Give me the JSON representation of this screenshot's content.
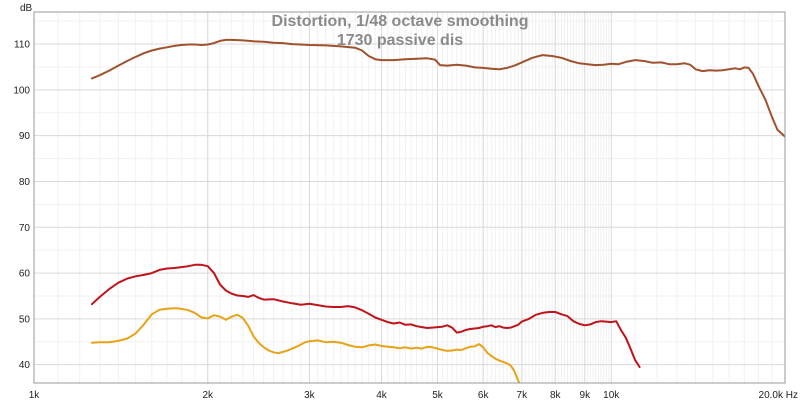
{
  "chart_data": {
    "type": "line",
    "title": "Distortion, 1/48 octave smoothing",
    "subtitle": "1730 passive dis",
    "ylabel": "dB",
    "xunit": "Hz",
    "xscale": "log",
    "xlim": [
      1000,
      20000
    ],
    "ylim": [
      36,
      117
    ],
    "grid": true,
    "background": "#ffffff",
    "grid_color": "#d9d9d9",
    "axis_color": "#9a9a9a",
    "x_ticks": [
      {
        "value": 1000,
        "label": "1k"
      },
      {
        "value": 2000,
        "label": "2k"
      },
      {
        "value": 3000,
        "label": "3k"
      },
      {
        "value": 4000,
        "label": "4k"
      },
      {
        "value": 5000,
        "label": "5k"
      },
      {
        "value": 6000,
        "label": "6k"
      },
      {
        "value": 7000,
        "label": "7k"
      },
      {
        "value": 8000,
        "label": "8k"
      },
      {
        "value": 9000,
        "label": "9k"
      },
      {
        "value": 10000,
        "label": "10k"
      },
      {
        "value": 20000,
        "label": "20.0k Hz"
      }
    ],
    "y_ticks": [
      {
        "value": 40,
        "label": "40"
      },
      {
        "value": 50,
        "label": "50"
      },
      {
        "value": 60,
        "label": "60"
      },
      {
        "value": 70,
        "label": "70"
      },
      {
        "value": 80,
        "label": "80"
      },
      {
        "value": 90,
        "label": "90"
      },
      {
        "value": 100,
        "label": "100"
      },
      {
        "value": 110,
        "label": "110"
      }
    ],
    "series": [
      {
        "color": "#a0522d",
        "points": [
          [
            1260,
            102.5
          ],
          [
            1300,
            103.2
          ],
          [
            1350,
            104.2
          ],
          [
            1400,
            105.3
          ],
          [
            1450,
            106.3
          ],
          [
            1500,
            107.2
          ],
          [
            1550,
            108.0
          ],
          [
            1600,
            108.6
          ],
          [
            1650,
            109.0
          ],
          [
            1700,
            109.3
          ],
          [
            1750,
            109.6
          ],
          [
            1800,
            109.8
          ],
          [
            1850,
            109.9
          ],
          [
            1900,
            109.9
          ],
          [
            1950,
            109.8
          ],
          [
            2000,
            109.9
          ],
          [
            2050,
            110.2
          ],
          [
            2100,
            110.7
          ],
          [
            2150,
            110.9
          ],
          [
            2200,
            110.9
          ],
          [
            2300,
            110.8
          ],
          [
            2400,
            110.6
          ],
          [
            2500,
            110.5
          ],
          [
            2600,
            110.3
          ],
          [
            2700,
            110.2
          ],
          [
            2800,
            110.0
          ],
          [
            2900,
            109.9
          ],
          [
            3000,
            109.8
          ],
          [
            3200,
            109.7
          ],
          [
            3400,
            109.5
          ],
          [
            3600,
            109.2
          ],
          [
            3700,
            108.6
          ],
          [
            3800,
            107.4
          ],
          [
            3900,
            106.7
          ],
          [
            4000,
            106.5
          ],
          [
            4200,
            106.5
          ],
          [
            4400,
            106.7
          ],
          [
            4600,
            106.8
          ],
          [
            4800,
            106.9
          ],
          [
            4950,
            106.6
          ],
          [
            5050,
            105.4
          ],
          [
            5200,
            105.3
          ],
          [
            5400,
            105.5
          ],
          [
            5600,
            105.3
          ],
          [
            5800,
            104.9
          ],
          [
            6000,
            104.8
          ],
          [
            6200,
            104.6
          ],
          [
            6400,
            104.5
          ],
          [
            6600,
            104.8
          ],
          [
            6800,
            105.3
          ],
          [
            7000,
            106.0
          ],
          [
            7300,
            107.0
          ],
          [
            7600,
            107.6
          ],
          [
            7900,
            107.4
          ],
          [
            8200,
            107.0
          ],
          [
            8500,
            106.3
          ],
          [
            8800,
            105.8
          ],
          [
            9100,
            105.6
          ],
          [
            9400,
            105.4
          ],
          [
            9700,
            105.5
          ],
          [
            10000,
            105.7
          ],
          [
            10300,
            105.6
          ],
          [
            10600,
            106.1
          ],
          [
            11000,
            106.5
          ],
          [
            11400,
            106.3
          ],
          [
            11800,
            105.9
          ],
          [
            12200,
            106.0
          ],
          [
            12600,
            105.6
          ],
          [
            13000,
            105.6
          ],
          [
            13400,
            105.8
          ],
          [
            13700,
            105.5
          ],
          [
            14000,
            104.5
          ],
          [
            14400,
            104.1
          ],
          [
            14800,
            104.3
          ],
          [
            15200,
            104.2
          ],
          [
            15600,
            104.3
          ],
          [
            16000,
            104.5
          ],
          [
            16400,
            104.7
          ],
          [
            16700,
            104.5
          ],
          [
            17000,
            104.9
          ],
          [
            17300,
            104.8
          ],
          [
            17600,
            103.5
          ],
          [
            18000,
            100.8
          ],
          [
            18500,
            97.8
          ],
          [
            19000,
            94.0
          ],
          [
            19400,
            91.3
          ],
          [
            20000,
            89.8
          ]
        ]
      },
      {
        "color": "#c0141a",
        "points": [
          [
            1260,
            53.2
          ],
          [
            1300,
            54.8
          ],
          [
            1350,
            56.5
          ],
          [
            1400,
            57.9
          ],
          [
            1450,
            58.8
          ],
          [
            1500,
            59.3
          ],
          [
            1550,
            59.6
          ],
          [
            1600,
            60.0
          ],
          [
            1650,
            60.7
          ],
          [
            1700,
            61.0
          ],
          [
            1750,
            61.1
          ],
          [
            1800,
            61.3
          ],
          [
            1850,
            61.5
          ],
          [
            1900,
            61.8
          ],
          [
            1950,
            61.8
          ],
          [
            2000,
            61.5
          ],
          [
            2050,
            60.0
          ],
          [
            2100,
            57.5
          ],
          [
            2150,
            56.2
          ],
          [
            2200,
            55.5
          ],
          [
            2250,
            55.1
          ],
          [
            2300,
            55.0
          ],
          [
            2350,
            54.8
          ],
          [
            2400,
            55.2
          ],
          [
            2450,
            54.6
          ],
          [
            2500,
            54.2
          ],
          [
            2600,
            54.3
          ],
          [
            2700,
            53.8
          ],
          [
            2800,
            53.4
          ],
          [
            2900,
            53.1
          ],
          [
            3000,
            53.3
          ],
          [
            3100,
            53.0
          ],
          [
            3200,
            52.7
          ],
          [
            3300,
            52.6
          ],
          [
            3400,
            52.6
          ],
          [
            3500,
            52.8
          ],
          [
            3600,
            52.5
          ],
          [
            3700,
            51.9
          ],
          [
            3800,
            51.1
          ],
          [
            3900,
            50.3
          ],
          [
            4000,
            49.8
          ],
          [
            4100,
            49.3
          ],
          [
            4200,
            49.0
          ],
          [
            4300,
            49.2
          ],
          [
            4400,
            48.7
          ],
          [
            4500,
            48.8
          ],
          [
            4600,
            48.4
          ],
          [
            4700,
            48.2
          ],
          [
            4800,
            48.0
          ],
          [
            4900,
            48.1
          ],
          [
            5000,
            48.2
          ],
          [
            5100,
            48.3
          ],
          [
            5200,
            48.6
          ],
          [
            5300,
            48.1
          ],
          [
            5400,
            47.0
          ],
          [
            5500,
            47.2
          ],
          [
            5600,
            47.6
          ],
          [
            5700,
            47.8
          ],
          [
            5800,
            47.9
          ],
          [
            5900,
            48.0
          ],
          [
            6000,
            48.3
          ],
          [
            6100,
            48.4
          ],
          [
            6200,
            48.6
          ],
          [
            6300,
            48.2
          ],
          [
            6400,
            48.4
          ],
          [
            6500,
            48.1
          ],
          [
            6600,
            48.0
          ],
          [
            6700,
            48.1
          ],
          [
            6800,
            48.4
          ],
          [
            6900,
            48.7
          ],
          [
            7000,
            49.4
          ],
          [
            7200,
            50.0
          ],
          [
            7400,
            50.9
          ],
          [
            7600,
            51.3
          ],
          [
            7800,
            51.5
          ],
          [
            8000,
            51.5
          ],
          [
            8200,
            51.0
          ],
          [
            8400,
            50.6
          ],
          [
            8600,
            49.5
          ],
          [
            8800,
            48.9
          ],
          [
            9000,
            48.6
          ],
          [
            9200,
            48.8
          ],
          [
            9400,
            49.3
          ],
          [
            9600,
            49.5
          ],
          [
            9800,
            49.4
          ],
          [
            10000,
            49.3
          ],
          [
            10200,
            49.5
          ],
          [
            10400,
            47.5
          ],
          [
            10600,
            45.9
          ],
          [
            10800,
            43.5
          ],
          [
            11000,
            41.0
          ],
          [
            11200,
            39.5
          ]
        ]
      },
      {
        "color": "#e8a317",
        "points": [
          [
            1260,
            44.8
          ],
          [
            1300,
            44.9
          ],
          [
            1350,
            44.9
          ],
          [
            1400,
            45.2
          ],
          [
            1450,
            45.7
          ],
          [
            1500,
            46.8
          ],
          [
            1550,
            48.8
          ],
          [
            1600,
            51.0
          ],
          [
            1650,
            52.0
          ],
          [
            1700,
            52.2
          ],
          [
            1750,
            52.3
          ],
          [
            1800,
            52.2
          ],
          [
            1850,
            51.9
          ],
          [
            1900,
            51.3
          ],
          [
            1950,
            50.3
          ],
          [
            2000,
            50.1
          ],
          [
            2050,
            50.8
          ],
          [
            2100,
            50.5
          ],
          [
            2150,
            49.8
          ],
          [
            2200,
            50.5
          ],
          [
            2250,
            50.9
          ],
          [
            2300,
            50.2
          ],
          [
            2350,
            48.5
          ],
          [
            2400,
            46.2
          ],
          [
            2450,
            44.8
          ],
          [
            2500,
            43.8
          ],
          [
            2550,
            43.1
          ],
          [
            2600,
            42.7
          ],
          [
            2650,
            42.5
          ],
          [
            2700,
            42.8
          ],
          [
            2750,
            43.1
          ],
          [
            2800,
            43.5
          ],
          [
            2850,
            43.9
          ],
          [
            2900,
            44.4
          ],
          [
            2950,
            44.9
          ],
          [
            3000,
            45.1
          ],
          [
            3100,
            45.3
          ],
          [
            3200,
            44.9
          ],
          [
            3300,
            45.0
          ],
          [
            3400,
            44.8
          ],
          [
            3500,
            44.3
          ],
          [
            3600,
            43.9
          ],
          [
            3700,
            43.8
          ],
          [
            3800,
            44.2
          ],
          [
            3900,
            44.4
          ],
          [
            4000,
            44.1
          ],
          [
            4100,
            43.9
          ],
          [
            4200,
            43.8
          ],
          [
            4300,
            43.6
          ],
          [
            4400,
            43.8
          ],
          [
            4500,
            43.5
          ],
          [
            4600,
            43.7
          ],
          [
            4700,
            43.5
          ],
          [
            4800,
            43.9
          ],
          [
            4900,
            43.8
          ],
          [
            5000,
            43.5
          ],
          [
            5100,
            43.2
          ],
          [
            5200,
            43.0
          ],
          [
            5300,
            43.1
          ],
          [
            5400,
            43.3
          ],
          [
            5500,
            43.2
          ],
          [
            5600,
            43.6
          ],
          [
            5700,
            43.9
          ],
          [
            5800,
            44.0
          ],
          [
            5900,
            44.5
          ],
          [
            6000,
            43.8
          ],
          [
            6100,
            42.6
          ],
          [
            6200,
            41.9
          ],
          [
            6300,
            41.3
          ],
          [
            6400,
            40.9
          ],
          [
            6500,
            40.6
          ],
          [
            6600,
            40.3
          ],
          [
            6700,
            39.8
          ],
          [
            6800,
            38.5
          ],
          [
            6900,
            36.5
          ],
          [
            7000,
            35.0
          ]
        ]
      }
    ]
  }
}
